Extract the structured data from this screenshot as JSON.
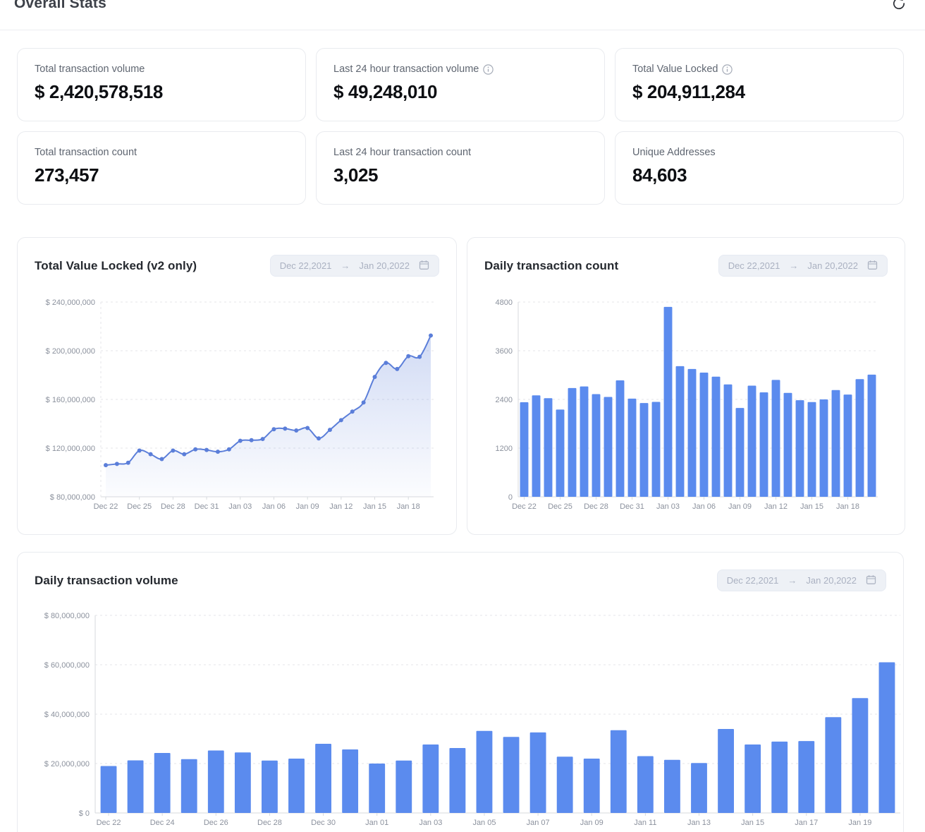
{
  "header": {
    "title": "Overall Stats",
    "refresh_icon": "refresh-circular-arrow"
  },
  "stat_cards": [
    {
      "label": "Total transaction volume",
      "value": "$ 2,420,578,518",
      "info": false
    },
    {
      "label": "Last 24 hour transaction volume",
      "value": "$ 49,248,010",
      "info": true
    },
    {
      "label": "Total Value Locked",
      "value": "$ 204,911,284",
      "info": true
    },
    {
      "label": "Total transaction count",
      "value": "273,457",
      "info": false
    },
    {
      "label": "Last 24 hour transaction count",
      "value": "3,025",
      "info": false
    },
    {
      "label": "Unique Addresses",
      "value": "84,603",
      "info": false
    }
  ],
  "date_range": {
    "start": "Dec 22,2021",
    "arrow": "→",
    "end": "Jan 20,2022",
    "calendar_icon": "calendar-icon"
  },
  "colors": {
    "bar_blue": "#5b8bee",
    "line_blue": "#5b7ed9",
    "grid": "#e4e6ea",
    "axis": "#d7dade",
    "tick_text": "#8b919d"
  },
  "chart_data": [
    {
      "type": "area",
      "title": "Total Value Locked (v2 only)",
      "color": "#5b7ed9",
      "x": [
        "Dec 22",
        "Dec 23",
        "Dec 24",
        "Dec 25",
        "Dec 26",
        "Dec 27",
        "Dec 28",
        "Dec 29",
        "Dec 30",
        "Dec 31",
        "Jan 01",
        "Jan 02",
        "Jan 03",
        "Jan 04",
        "Jan 05",
        "Jan 06",
        "Jan 07",
        "Jan 08",
        "Jan 09",
        "Jan 10",
        "Jan 11",
        "Jan 12",
        "Jan 13",
        "Jan 14",
        "Jan 15",
        "Jan 16",
        "Jan 17",
        "Jan 18",
        "Jan 19",
        "Jan 20"
      ],
      "values": [
        106000000,
        107000000,
        108000000,
        118000000,
        115000000,
        111000000,
        118000000,
        115000000,
        119000000,
        118500000,
        117000000,
        119000000,
        126000000,
        126500000,
        127500000,
        135500000,
        136000000,
        134500000,
        136500000,
        128000000,
        135000000,
        143000000,
        150000000,
        157500000,
        178500000,
        190000000,
        185000000,
        195500000,
        195000000,
        212500000
      ],
      "ylim": [
        80000000,
        240000000
      ],
      "yticks": [
        {
          "value": 80000000,
          "label": "$ 80,000,000"
        },
        {
          "value": 120000000,
          "label": "$ 120,000,000"
        },
        {
          "value": 160000000,
          "label": "$ 160,000,000"
        },
        {
          "value": 200000000,
          "label": "$ 200,000,000"
        },
        {
          "value": 240000000,
          "label": "$ 240,000,000"
        }
      ],
      "xtick_every": 3,
      "grid": "dashed-horizontal",
      "legend": "none"
    },
    {
      "type": "bar",
      "title": "Daily transaction count",
      "color": "#5b8bee",
      "x": [
        "Dec 22",
        "Dec 23",
        "Dec 24",
        "Dec 25",
        "Dec 26",
        "Dec 27",
        "Dec 28",
        "Dec 29",
        "Dec 30",
        "Dec 31",
        "Jan 01",
        "Jan 02",
        "Jan 03",
        "Jan 04",
        "Jan 05",
        "Jan 06",
        "Jan 07",
        "Jan 08",
        "Jan 09",
        "Jan 10",
        "Jan 11",
        "Jan 12",
        "Jan 13",
        "Jan 14",
        "Jan 15",
        "Jan 16",
        "Jan 17",
        "Jan 18",
        "Jan 19",
        "Jan 20"
      ],
      "values": [
        2330,
        2500,
        2430,
        2150,
        2680,
        2720,
        2530,
        2460,
        2870,
        2420,
        2310,
        2340,
        4680,
        3220,
        3150,
        3060,
        2960,
        2770,
        2190,
        2740,
        2575,
        2880,
        2560,
        2380,
        2335,
        2400,
        2630,
        2520,
        2900,
        3010
      ],
      "ylim": [
        0,
        4800
      ],
      "yticks": [
        {
          "value": 0,
          "label": "0"
        },
        {
          "value": 1200,
          "label": "1200"
        },
        {
          "value": 2400,
          "label": "2400"
        },
        {
          "value": 3600,
          "label": "3600"
        },
        {
          "value": 4800,
          "label": "4800"
        }
      ],
      "xtick_every": 3,
      "grid": "dashed-horizontal",
      "legend": "none"
    },
    {
      "type": "bar",
      "title": "Daily transaction volume",
      "color": "#5b8bee",
      "x": [
        "Dec 22",
        "Dec 23",
        "Dec 24",
        "Dec 25",
        "Dec 26",
        "Dec 27",
        "Dec 28",
        "Dec 29",
        "Dec 30",
        "Dec 31",
        "Jan 01",
        "Jan 02",
        "Jan 03",
        "Jan 04",
        "Jan 05",
        "Jan 06",
        "Jan 07",
        "Jan 08",
        "Jan 09",
        "Jan 10",
        "Jan 11",
        "Jan 12",
        "Jan 13",
        "Jan 14",
        "Jan 15",
        "Jan 16",
        "Jan 17",
        "Jan 18",
        "Jan 19",
        "Jan 20"
      ],
      "values": [
        19000000,
        21300000,
        24300000,
        21800000,
        25300000,
        24500000,
        21200000,
        22000000,
        28000000,
        25700000,
        20000000,
        21200000,
        27700000,
        26300000,
        33200000,
        30800000,
        32600000,
        22800000,
        22000000,
        33500000,
        23000000,
        21500000,
        20200000,
        34000000,
        27700000,
        28900000,
        29100000,
        38800000,
        46500000,
        61000000
      ],
      "ylim": [
        0,
        80000000
      ],
      "yticks": [
        {
          "value": 0,
          "label": "$ 0"
        },
        {
          "value": 20000000,
          "label": "$ 20,000,000"
        },
        {
          "value": 40000000,
          "label": "$ 40,000,000"
        },
        {
          "value": 60000000,
          "label": "$ 60,000,000"
        },
        {
          "value": 80000000,
          "label": "$ 80,000,000"
        }
      ],
      "xtick_every": 2,
      "grid": "dashed-horizontal",
      "legend": "none"
    }
  ]
}
